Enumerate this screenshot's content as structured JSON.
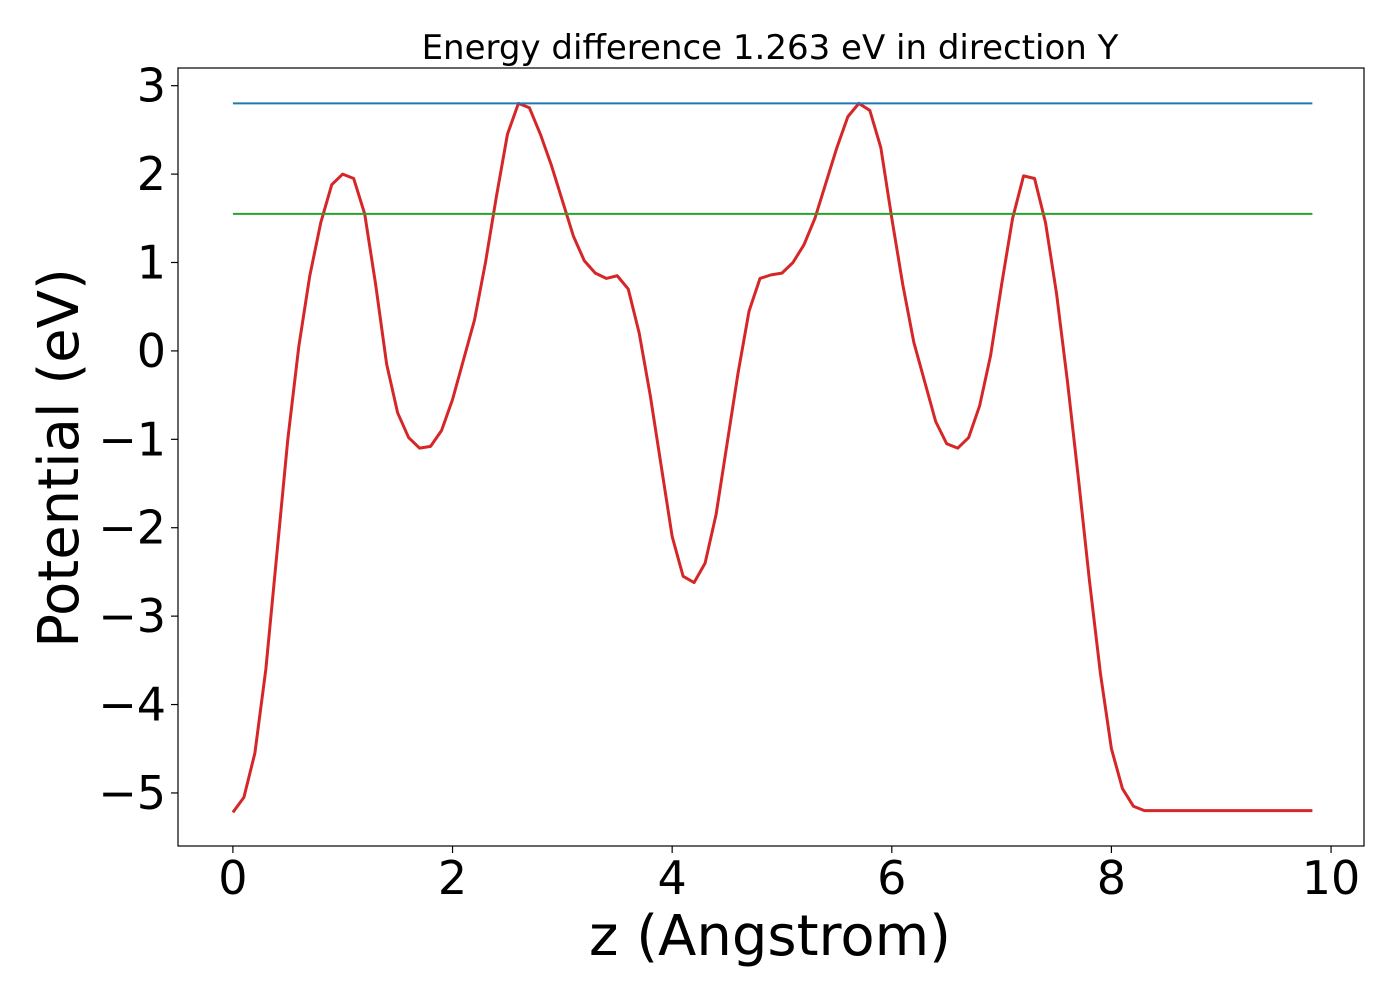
{
  "chart_data": {
    "type": "line",
    "title": "Energy difference 1.263 eV in direction Y",
    "xlabel": "z (Angstrom)",
    "ylabel": "Potential (eV)",
    "xlim": [
      -0.5,
      10.3
    ],
    "ylim": [
      -5.6,
      3.2
    ],
    "x_ticks": [
      0,
      2,
      4,
      6,
      8,
      10
    ],
    "x_tick_labels": [
      "0",
      "2",
      "4",
      "6",
      "8",
      "10"
    ],
    "y_ticks": [
      3,
      2,
      1,
      0,
      -1,
      -2,
      -3,
      -4,
      -5
    ],
    "y_tick_labels": [
      "3",
      "2",
      "1",
      "0",
      "−1",
      "−2",
      "−3",
      "−4",
      "−5"
    ],
    "grid": false,
    "series": [
      {
        "color": "#d62728",
        "x": [
          0,
          0.1,
          0.2,
          0.3,
          0.4,
          0.5,
          0.6,
          0.7,
          0.8,
          0.9,
          1.0,
          1.1,
          1.2,
          1.3,
          1.4,
          1.5,
          1.6,
          1.7,
          1.8,
          1.9,
          2.0,
          2.1,
          2.2,
          2.3,
          2.4,
          2.5,
          2.6,
          2.7,
          2.8,
          2.9,
          3.0,
          3.1,
          3.2,
          3.3,
          3.4,
          3.5,
          3.6,
          3.7,
          3.8,
          3.9,
          4.0,
          4.1,
          4.2,
          4.3,
          4.4,
          4.5,
          4.6,
          4.7,
          4.8,
          4.9,
          5.0,
          5.1,
          5.2,
          5.3,
          5.4,
          5.5,
          5.6,
          5.7,
          5.8,
          5.9,
          6.0,
          6.1,
          6.2,
          6.3,
          6.4,
          6.5,
          6.6,
          6.7,
          6.8,
          6.9,
          7.0,
          7.1,
          7.2,
          7.3,
          7.4,
          7.5,
          7.6,
          7.7,
          7.8,
          7.9,
          8.0,
          8.1,
          8.2,
          8.3,
          8.4,
          8.5,
          8.6,
          8.7,
          8.8,
          8.9,
          9.0,
          9.1,
          9.2,
          9.3,
          9.4,
          9.5,
          9.6,
          9.7,
          9.8,
          9.83
        ],
        "y": [
          -5.22,
          -5.05,
          -4.55,
          -3.6,
          -2.3,
          -1.0,
          0.05,
          0.85,
          1.45,
          1.88,
          2.0,
          1.95,
          1.55,
          0.75,
          -0.15,
          -0.7,
          -0.98,
          -1.1,
          -1.08,
          -0.9,
          -0.55,
          -0.1,
          0.35,
          1.0,
          1.75,
          2.45,
          2.8,
          2.75,
          2.45,
          2.1,
          1.7,
          1.3,
          1.02,
          0.88,
          0.82,
          0.85,
          0.7,
          0.2,
          -0.5,
          -1.3,
          -2.1,
          -2.55,
          -2.62,
          -2.4,
          -1.85,
          -1.05,
          -0.25,
          0.45,
          0.82,
          0.86,
          0.88,
          1.0,
          1.2,
          1.5,
          1.9,
          2.3,
          2.65,
          2.8,
          2.72,
          2.3,
          1.5,
          0.75,
          0.1,
          -0.35,
          -0.8,
          -1.05,
          -1.1,
          -0.98,
          -0.62,
          -0.05,
          0.75,
          1.5,
          1.98,
          1.95,
          1.45,
          0.65,
          -0.35,
          -1.45,
          -2.6,
          -3.65,
          -4.5,
          -4.95,
          -5.15,
          -5.2,
          -5.2,
          -5.2,
          -5.2,
          -5.2,
          -5.2,
          -5.2,
          -5.2,
          -5.2,
          -5.2,
          -5.2,
          -5.2,
          -5.2,
          -5.2,
          -5.2,
          -5.2,
          -5.2
        ]
      },
      {
        "color": "#1f77b4",
        "x": [
          0,
          9.83
        ],
        "y": [
          2.8,
          2.8
        ]
      },
      {
        "color": "#2ca02c",
        "x": [
          0,
          9.83
        ],
        "y": [
          1.55,
          1.55
        ]
      }
    ]
  }
}
